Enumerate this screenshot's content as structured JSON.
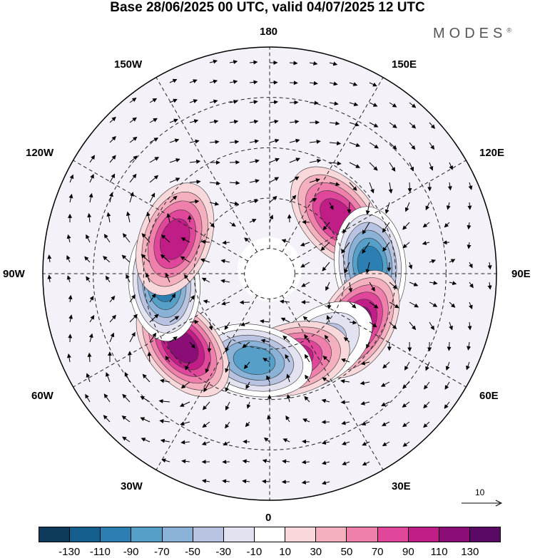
{
  "title": "Base 28/06/2025 00 UTC, valid 04/07/2025 12 UTC",
  "brand": "MODES",
  "brand_mark": "®",
  "longitude_labels": {
    "top": "180",
    "top_right": "150E",
    "right_upper": "120E",
    "right": "90E",
    "right_lower": "60E",
    "bottom_right": "30E",
    "bottom": "0",
    "bottom_left": "30W",
    "left_lower": "60W",
    "left": "90W",
    "left_upper": "120W",
    "top_left": "150W"
  },
  "reference_vector": "10",
  "colorbar": {
    "ticks": [
      "-130",
      "-110",
      "-90",
      "-70",
      "-50",
      "-30",
      "-10",
      "10",
      "30",
      "50",
      "70",
      "90",
      "110",
      "130"
    ],
    "colors": [
      "#0e3b5c",
      "#145f8d",
      "#2c7fb2",
      "#569fc9",
      "#8ab1d6",
      "#b7c3e0",
      "#e2e2f0",
      "#ffffff",
      "#f9d8dc",
      "#f5b0c0",
      "#ef80ab",
      "#e0479a",
      "#c01d86",
      "#8a0e76",
      "#5a0a64"
    ]
  },
  "map_data": {
    "projection": "north-polar-stereographic",
    "anomalies": [
      {
        "sign": "positive",
        "level": 90,
        "lon": 130,
        "lat": 55
      },
      {
        "sign": "negative",
        "level": -110,
        "lon": 95,
        "lat": 50
      },
      {
        "sign": "positive",
        "level": 110,
        "lon": 60,
        "lat": 50
      },
      {
        "sign": "negative",
        "level": -50,
        "lon": 35,
        "lat": 55
      },
      {
        "sign": "positive",
        "level": 90,
        "lon": 15,
        "lat": 55
      },
      {
        "sign": "negative",
        "level": -90,
        "lon": -10,
        "lat": 55
      },
      {
        "sign": "positive",
        "level": 110,
        "lon": -50,
        "lat": 45
      },
      {
        "sign": "negative",
        "level": -110,
        "lon": -85,
        "lat": 48
      },
      {
        "sign": "positive",
        "level": 90,
        "lon": -110,
        "lat": 50
      }
    ]
  }
}
